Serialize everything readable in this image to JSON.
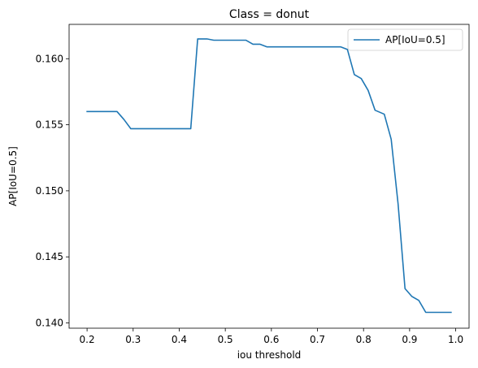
{
  "chart_data": {
    "type": "line",
    "title": "Class = donut",
    "xlabel": "iou threshold",
    "ylabel": "AP[IoU=0.5]",
    "xlim": [
      0.161,
      1.029
    ],
    "ylim": [
      0.1396,
      0.1626
    ],
    "xticks": [
      0.2,
      0.3,
      0.4,
      0.5,
      0.6,
      0.7,
      0.8,
      0.9,
      1.0
    ],
    "xtick_labels": [
      "0.2",
      "0.3",
      "0.4",
      "0.5",
      "0.6",
      "0.7",
      "0.8",
      "0.9",
      "1.0"
    ],
    "yticks": [
      0.14,
      0.145,
      0.15,
      0.155,
      0.16
    ],
    "ytick_labels": [
      "0.140",
      "0.145",
      "0.150",
      "0.155",
      "0.160"
    ],
    "grid": false,
    "legend_position": "top-right",
    "series": [
      {
        "name": "AP[IoU=0.5]",
        "color": "#1f77b4",
        "x": [
          0.2,
          0.215,
          0.23,
          0.245,
          0.26,
          0.265,
          0.28,
          0.295,
          0.31,
          0.325,
          0.34,
          0.355,
          0.37,
          0.385,
          0.4,
          0.415,
          0.425,
          0.44,
          0.46,
          0.475,
          0.49,
          0.505,
          0.52,
          0.535,
          0.545,
          0.56,
          0.575,
          0.59,
          0.605,
          0.62,
          0.635,
          0.65,
          0.665,
          0.68,
          0.695,
          0.71,
          0.725,
          0.74,
          0.75,
          0.765,
          0.78,
          0.795,
          0.81,
          0.825,
          0.845,
          0.86,
          0.875,
          0.89,
          0.905,
          0.92,
          0.935,
          0.95,
          0.965,
          0.98,
          0.99
        ],
        "values": [
          0.156,
          0.156,
          0.156,
          0.156,
          0.156,
          0.156,
          0.1554,
          0.1547,
          0.1547,
          0.1547,
          0.1547,
          0.1547,
          0.1547,
          0.1547,
          0.1547,
          0.1547,
          0.1547,
          0.1615,
          0.1615,
          0.1614,
          0.1614,
          0.1614,
          0.1614,
          0.1614,
          0.1614,
          0.1611,
          0.1611,
          0.1609,
          0.1609,
          0.1609,
          0.1609,
          0.1609,
          0.1609,
          0.1609,
          0.1609,
          0.1609,
          0.1609,
          0.1609,
          0.1609,
          0.1607,
          0.1588,
          0.1585,
          0.1576,
          0.1561,
          0.1558,
          0.1539,
          0.149,
          0.1426,
          0.142,
          0.1417,
          0.1408,
          0.1408,
          0.1408,
          0.1408,
          0.1408
        ]
      }
    ]
  }
}
